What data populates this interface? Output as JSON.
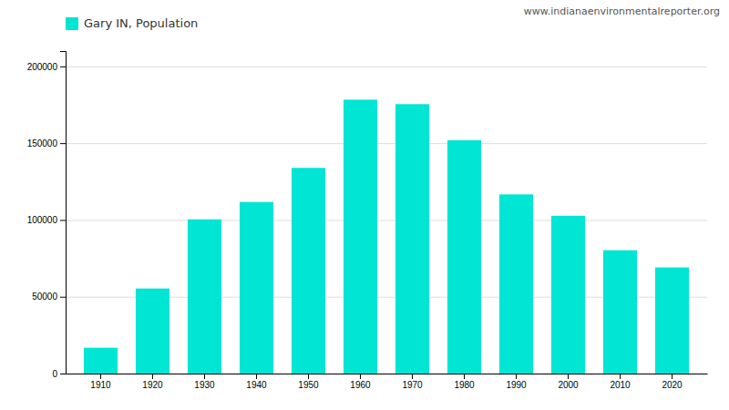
{
  "chart_data": {
    "type": "bar",
    "categories": [
      "1910",
      "1920",
      "1930",
      "1940",
      "1950",
      "1960",
      "1970",
      "1980",
      "1990",
      "2000",
      "2010",
      "2020"
    ],
    "series": [
      {
        "name": "Gary IN, Population",
        "color": "#00E5D4",
        "values": [
          16802,
          55378,
          100426,
          111719,
          133911,
          178320,
          175415,
          151953,
          116646,
          102746,
          80294,
          69093
        ]
      }
    ],
    "ylim": [
      0,
      210000
    ],
    "yticks": [
      0,
      50000,
      100000,
      150000,
      200000
    ],
    "grid": true,
    "legend": "top",
    "annotations": [
      "www.indianaenvironmentalreporter.org"
    ]
  }
}
